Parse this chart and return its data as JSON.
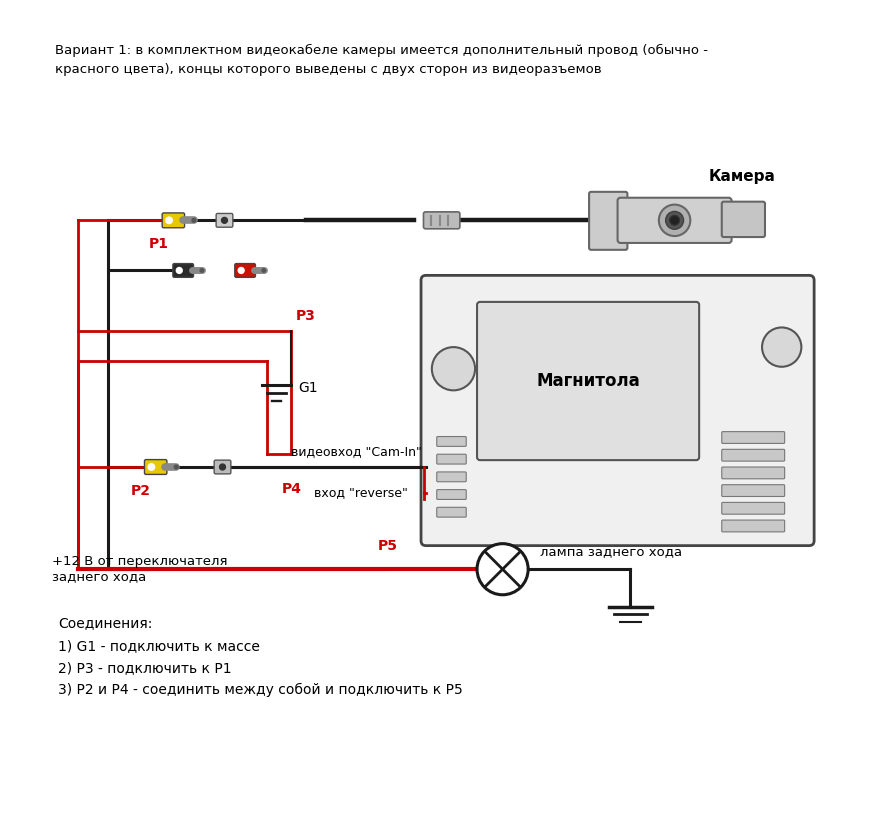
{
  "title_text": "Вариант 1: в комплектном видеокабеле камеры имеется дополнительный провод (обычно -\nкрасного цвета), концы которого выведены с двух сторон из видеоразъемов",
  "label_camera": "Камера",
  "label_magnitola": "Магнитола",
  "label_lamp": "лампа заднего хода",
  "label_p1": "P1",
  "label_p2": "P2",
  "label_p3": "P3",
  "label_p4": "P4",
  "label_p5": "P5",
  "label_g1": "G1",
  "label_cam_in": "видеовход \"Cam-In\"",
  "label_reverse": "вход \"reverse\"",
  "label_12v": "+12 В от переключателя\nзаднего хода",
  "label_connections": "Соединения:\n1) G1 - подключить к массе\n2) Р3 - подключить к Р1\n3) Р2 и Р4 - соединить между собой и подключить к Р5",
  "bg_color": "#ffffff",
  "black_wire": "#1a1a1a",
  "red_wire": "#cc0000",
  "yellow_rca": "#e8c800",
  "gray_rca": "#aaaaaa",
  "black_rca": "#222222",
  "red_rca": "#cc2200"
}
